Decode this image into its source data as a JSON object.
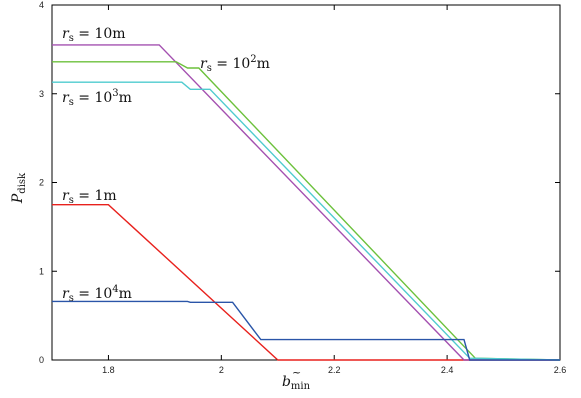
{
  "chart_data": {
    "type": "line",
    "xlabel": "b̃min",
    "ylabel": "Pdisk",
    "xlim": [
      1.7,
      2.6
    ],
    "ylim": [
      0,
      4
    ],
    "x_ticks": [
      1.8,
      2.0,
      2.2,
      2.4,
      2.6
    ],
    "x_tick_labels": [
      "1.8",
      "2",
      "2.2",
      "2.4",
      "2.6"
    ],
    "y_ticks": [
      0,
      1,
      2,
      3,
      4
    ],
    "y_tick_labels": [
      "0",
      "1",
      "2",
      "3",
      "4"
    ],
    "grid": false,
    "series": [
      {
        "name": "r_s = 1m",
        "label_parts": {
          "main": "r",
          "sub": "s",
          "rest": " = 1m"
        },
        "color": "#e8211d",
        "points": [
          [
            1.7,
            1.75
          ],
          [
            1.8,
            1.75
          ],
          [
            2.1,
            0.0
          ],
          [
            2.6,
            0.0
          ]
        ]
      },
      {
        "name": "r_s = 10m",
        "label_parts": {
          "main": "r",
          "sub": "s",
          "rest": " = 10m"
        },
        "color": "#a450b0",
        "points": [
          [
            1.7,
            3.55
          ],
          [
            1.89,
            3.55
          ],
          [
            2.43,
            0.0
          ],
          [
            2.6,
            0.0
          ]
        ]
      },
      {
        "name": "r_s = 10^2m",
        "label_parts": {
          "main": "r",
          "sub": "s",
          "rest": " = 10",
          "sup": "2",
          "tail": "m"
        },
        "color": "#6cc13c",
        "points": [
          [
            1.7,
            3.36
          ],
          [
            1.92,
            3.36
          ],
          [
            1.94,
            3.29
          ],
          [
            1.96,
            3.29
          ],
          [
            2.45,
            0.02
          ],
          [
            2.6,
            0.0
          ]
        ]
      },
      {
        "name": "r_s = 10^3m",
        "label_parts": {
          "main": "r",
          "sub": "s",
          "rest": " = 10",
          "sup": "3",
          "tail": "m"
        },
        "color": "#4fcbcf",
        "points": [
          [
            1.7,
            3.13
          ],
          [
            1.93,
            3.13
          ],
          [
            1.945,
            3.05
          ],
          [
            1.98,
            3.05
          ],
          [
            2.44,
            0.02
          ],
          [
            2.6,
            0.0
          ]
        ]
      },
      {
        "name": "r_s = 10^4m",
        "label_parts": {
          "main": "r",
          "sub": "s",
          "rest": " = 10",
          "sup": "4",
          "tail": "m"
        },
        "color": "#2a55a8",
        "points": [
          [
            1.7,
            0.66
          ],
          [
            1.94,
            0.66
          ],
          [
            1.945,
            0.65
          ],
          [
            2.02,
            0.65
          ],
          [
            2.07,
            0.23
          ],
          [
            2.43,
            0.23
          ],
          [
            2.44,
            0.0
          ],
          [
            2.6,
            0.0
          ]
        ]
      }
    ]
  }
}
